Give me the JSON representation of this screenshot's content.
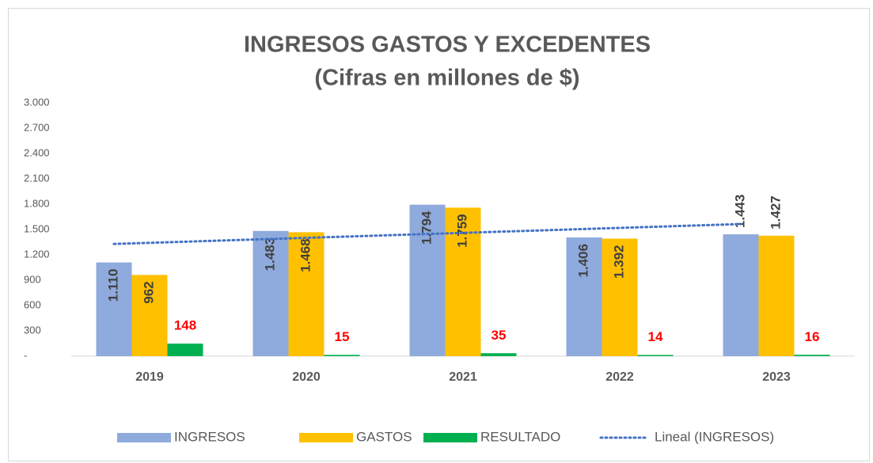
{
  "chart_data": {
    "type": "bar",
    "title": "INGRESOS GASTOS Y EXCEDENTES",
    "subtitle": "(Cifras en millones de $)",
    "categories": [
      "2019",
      "2020",
      "2021",
      "2022",
      "2023"
    ],
    "series": [
      {
        "name": "INGRESOS",
        "color": "#8faadc",
        "values": [
          1110,
          1483,
          1794,
          1406,
          1443
        ],
        "value_labels": [
          "1.110",
          "1.483",
          "1.794",
          "1.406",
          "1.443"
        ]
      },
      {
        "name": "GASTOS",
        "color": "#ffc000",
        "values": [
          962,
          1468,
          1759,
          1392,
          1427
        ],
        "value_labels": [
          "962",
          "1.468",
          "1.759",
          "1.392",
          "1.427"
        ]
      },
      {
        "name": "RESULTADO",
        "color": "#00b050",
        "values": [
          148,
          15,
          35,
          14,
          16
        ]
      },
      {
        "name": "Lineal (INGRESOS)",
        "color": "#4472c4",
        "type": "line",
        "values": [
          1329,
          1388,
          1447,
          1506,
          1565
        ]
      }
    ],
    "ylim": [
      0,
      3000
    ],
    "yticks": [
      {
        "value": 0,
        "label": "-"
      },
      {
        "value": 300,
        "label": "300"
      },
      {
        "value": 600,
        "label": "600"
      },
      {
        "value": 900,
        "label": "900"
      },
      {
        "value": 1200,
        "label": "1.200"
      },
      {
        "value": 1500,
        "label": "1.500"
      },
      {
        "value": 1800,
        "label": "1.800"
      },
      {
        "value": 2100,
        "label": "2.100"
      },
      {
        "value": 2400,
        "label": "2.400"
      },
      {
        "value": 2700,
        "label": "2.700"
      },
      {
        "value": 3000,
        "label": "3.000"
      }
    ],
    "legend": "bottom"
  }
}
